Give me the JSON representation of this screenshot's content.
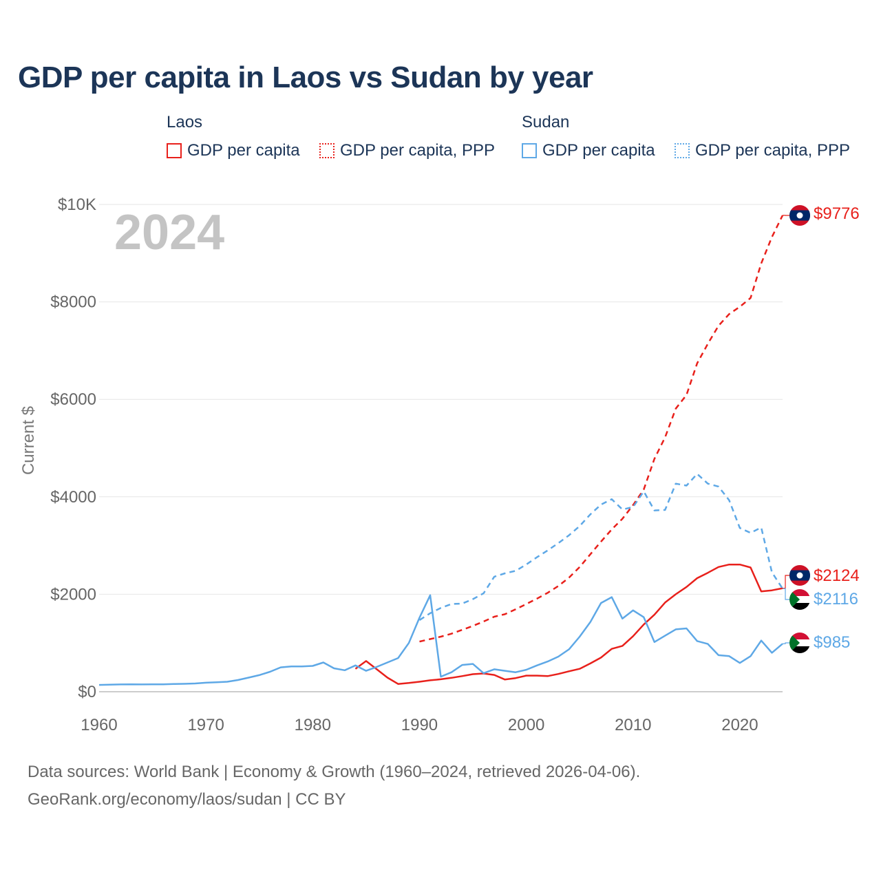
{
  "title": "GDP per capita in Laos vs Sudan by year",
  "legend": {
    "laos": {
      "name": "Laos",
      "gdp_label": "GDP per capita",
      "ppp_label": "GDP per capita, PPP",
      "color": "#e8201b"
    },
    "sudan": {
      "name": "Sudan",
      "gdp_label": "GDP per capita",
      "ppp_label": "GDP per capita, PPP",
      "color": "#5ea8e6"
    }
  },
  "year_watermark": "2024",
  "y_axis_label": "Current $",
  "footer": {
    "line1": "Data sources: World Bank | Economy & Growth (1960–2024, retrieved 2026-04-06).",
    "line2": "GeoRank.org/economy/laos/sudan | CC BY"
  },
  "chart_data": {
    "type": "line",
    "title": "GDP per capita in Laos vs Sudan by year",
    "xlabel": "",
    "ylabel": "Current $",
    "xlim": [
      1960,
      2024
    ],
    "ylim": [
      0,
      10000
    ],
    "x_ticks": [
      1960,
      1970,
      1980,
      1990,
      2000,
      2010,
      2020
    ],
    "x_tick_labels": [
      "1960",
      "1970",
      "1980",
      "1990",
      "2000",
      "2010",
      "2020"
    ],
    "y_ticks": [
      0,
      2000,
      4000,
      6000,
      8000,
      10000
    ],
    "y_tick_labels": [
      "$0",
      "$2000",
      "$4000",
      "$6000",
      "$8000",
      "$10K"
    ],
    "grid": true,
    "series": [
      {
        "name": "Laos GDP per capita",
        "country": "Laos",
        "style": "solid",
        "color": "#e8201b",
        "end_label": "$2124",
        "points": [
          [
            1984,
            470
          ],
          [
            1985,
            630
          ],
          [
            1986,
            460
          ],
          [
            1987,
            290
          ],
          [
            1988,
            160
          ],
          [
            1989,
            180
          ],
          [
            1990,
            205
          ],
          [
            1991,
            235
          ],
          [
            1992,
            255
          ],
          [
            1993,
            285
          ],
          [
            1994,
            320
          ],
          [
            1995,
            360
          ],
          [
            1996,
            375
          ],
          [
            1997,
            345
          ],
          [
            1998,
            250
          ],
          [
            1999,
            280
          ],
          [
            2000,
            330
          ],
          [
            2001,
            330
          ],
          [
            2002,
            320
          ],
          [
            2003,
            365
          ],
          [
            2004,
            420
          ],
          [
            2005,
            470
          ],
          [
            2006,
            580
          ],
          [
            2007,
            700
          ],
          [
            2008,
            880
          ],
          [
            2009,
            940
          ],
          [
            2010,
            1140
          ],
          [
            2011,
            1380
          ],
          [
            2012,
            1580
          ],
          [
            2013,
            1830
          ],
          [
            2014,
            2000
          ],
          [
            2015,
            2150
          ],
          [
            2016,
            2330
          ],
          [
            2017,
            2440
          ],
          [
            2018,
            2560
          ],
          [
            2019,
            2610
          ],
          [
            2020,
            2610
          ],
          [
            2021,
            2550
          ],
          [
            2022,
            2060
          ],
          [
            2023,
            2080
          ],
          [
            2024,
            2124
          ]
        ]
      },
      {
        "name": "Laos GDP per capita, PPP",
        "country": "Laos",
        "style": "dashed",
        "color": "#e8201b",
        "end_label": "$9776",
        "points": [
          [
            1990,
            1030
          ],
          [
            1991,
            1080
          ],
          [
            1992,
            1130
          ],
          [
            1993,
            1190
          ],
          [
            1994,
            1270
          ],
          [
            1995,
            1350
          ],
          [
            1996,
            1440
          ],
          [
            1997,
            1540
          ],
          [
            1998,
            1590
          ],
          [
            1999,
            1690
          ],
          [
            2000,
            1800
          ],
          [
            2001,
            1910
          ],
          [
            2002,
            2030
          ],
          [
            2003,
            2170
          ],
          [
            2004,
            2340
          ],
          [
            2005,
            2560
          ],
          [
            2006,
            2820
          ],
          [
            2007,
            3080
          ],
          [
            2008,
            3330
          ],
          [
            2009,
            3550
          ],
          [
            2010,
            3830
          ],
          [
            2011,
            4150
          ],
          [
            2012,
            4780
          ],
          [
            2013,
            5220
          ],
          [
            2014,
            5810
          ],
          [
            2015,
            6090
          ],
          [
            2016,
            6740
          ],
          [
            2017,
            7140
          ],
          [
            2018,
            7510
          ],
          [
            2019,
            7750
          ],
          [
            2020,
            7900
          ],
          [
            2021,
            8080
          ],
          [
            2022,
            8790
          ],
          [
            2023,
            9330
          ],
          [
            2024,
            9776
          ]
        ]
      },
      {
        "name": "Sudan GDP per capita",
        "country": "Sudan",
        "style": "solid",
        "color": "#5ea8e6",
        "end_label": "$985",
        "points": [
          [
            1960,
            140
          ],
          [
            1961,
            145
          ],
          [
            1962,
            150
          ],
          [
            1963,
            152
          ],
          [
            1964,
            150
          ],
          [
            1965,
            152
          ],
          [
            1966,
            152
          ],
          [
            1967,
            158
          ],
          [
            1968,
            162
          ],
          [
            1969,
            170
          ],
          [
            1970,
            185
          ],
          [
            1971,
            195
          ],
          [
            1972,
            205
          ],
          [
            1973,
            240
          ],
          [
            1974,
            290
          ],
          [
            1975,
            340
          ],
          [
            1976,
            410
          ],
          [
            1977,
            500
          ],
          [
            1978,
            520
          ],
          [
            1979,
            520
          ],
          [
            1980,
            530
          ],
          [
            1981,
            600
          ],
          [
            1982,
            480
          ],
          [
            1983,
            440
          ],
          [
            1984,
            540
          ],
          [
            1985,
            430
          ],
          [
            1986,
            510
          ],
          [
            1987,
            600
          ],
          [
            1988,
            690
          ],
          [
            1989,
            1000
          ],
          [
            1990,
            1520
          ],
          [
            1991,
            1980
          ],
          [
            1992,
            310
          ],
          [
            1993,
            400
          ],
          [
            1994,
            550
          ],
          [
            1995,
            570
          ],
          [
            1996,
            380
          ],
          [
            1997,
            460
          ],
          [
            1998,
            430
          ],
          [
            1999,
            400
          ],
          [
            2000,
            450
          ],
          [
            2001,
            540
          ],
          [
            2002,
            620
          ],
          [
            2003,
            720
          ],
          [
            2004,
            870
          ],
          [
            2005,
            1130
          ],
          [
            2006,
            1430
          ],
          [
            2007,
            1820
          ],
          [
            2008,
            1940
          ],
          [
            2009,
            1500
          ],
          [
            2010,
            1670
          ],
          [
            2011,
            1530
          ],
          [
            2012,
            1020
          ],
          [
            2013,
            1150
          ],
          [
            2014,
            1280
          ],
          [
            2015,
            1300
          ],
          [
            2016,
            1040
          ],
          [
            2017,
            980
          ],
          [
            2018,
            750
          ],
          [
            2019,
            730
          ],
          [
            2020,
            590
          ],
          [
            2021,
            730
          ],
          [
            2022,
            1050
          ],
          [
            2023,
            800
          ],
          [
            2024,
            985
          ]
        ]
      },
      {
        "name": "Sudan GDP per capita, PPP",
        "country": "Sudan",
        "style": "dashed",
        "color": "#5ea8e6",
        "end_label": "$2116",
        "points": [
          [
            1990,
            1470
          ],
          [
            1991,
            1610
          ],
          [
            1992,
            1720
          ],
          [
            1993,
            1800
          ],
          [
            1994,
            1810
          ],
          [
            1995,
            1900
          ],
          [
            1996,
            2020
          ],
          [
            1997,
            2360
          ],
          [
            1998,
            2430
          ],
          [
            1999,
            2480
          ],
          [
            2000,
            2610
          ],
          [
            2001,
            2760
          ],
          [
            2002,
            2900
          ],
          [
            2003,
            3050
          ],
          [
            2004,
            3210
          ],
          [
            2005,
            3400
          ],
          [
            2006,
            3640
          ],
          [
            2007,
            3840
          ],
          [
            2008,
            3950
          ],
          [
            2009,
            3740
          ],
          [
            2010,
            3790
          ],
          [
            2011,
            4110
          ],
          [
            2012,
            3720
          ],
          [
            2013,
            3730
          ],
          [
            2014,
            4270
          ],
          [
            2015,
            4230
          ],
          [
            2016,
            4470
          ],
          [
            2017,
            4270
          ],
          [
            2018,
            4210
          ],
          [
            2019,
            3930
          ],
          [
            2020,
            3360
          ],
          [
            2021,
            3260
          ],
          [
            2022,
            3370
          ],
          [
            2023,
            2450
          ],
          [
            2024,
            2116
          ]
        ]
      }
    ]
  }
}
